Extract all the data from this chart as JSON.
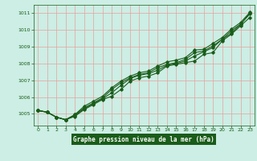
{
  "background_color": "#cceee4",
  "plot_bg_color": "#cceee4",
  "grid_color": "#e8a0a0",
  "line_color": "#1a5c1a",
  "label_bg": "#1a5c1a",
  "label_fg": "#ffffff",
  "xlabel": "Graphe pression niveau de la mer (hPa)",
  "ylim": [
    1004.3,
    1011.5
  ],
  "xlim": [
    -0.5,
    23.5
  ],
  "yticks": [
    1005,
    1006,
    1007,
    1008,
    1009,
    1010,
    1011
  ],
  "xticks": [
    0,
    1,
    2,
    3,
    4,
    5,
    6,
    7,
    8,
    9,
    10,
    11,
    12,
    13,
    14,
    15,
    16,
    17,
    18,
    19,
    20,
    21,
    22,
    23
  ],
  "lines": [
    [
      1005.2,
      1005.1,
      1004.8,
      1004.65,
      1004.85,
      1005.25,
      1005.55,
      1005.85,
      1006.05,
      1006.45,
      1006.95,
      1007.15,
      1007.25,
      1007.45,
      1007.85,
      1007.95,
      1008.05,
      1008.15,
      1008.55,
      1008.65,
      1009.35,
      1009.75,
      1010.25,
      1010.75
    ],
    [
      1005.2,
      1005.1,
      1004.8,
      1004.65,
      1004.95,
      1005.35,
      1005.65,
      1005.95,
      1006.45,
      1006.85,
      1007.15,
      1007.35,
      1007.45,
      1007.75,
      1007.95,
      1008.05,
      1008.25,
      1008.65,
      1008.75,
      1009.05,
      1009.45,
      1009.95,
      1010.35,
      1010.95
    ],
    [
      1005.2,
      1005.1,
      1004.8,
      1004.65,
      1004.95,
      1005.45,
      1005.75,
      1006.05,
      1006.55,
      1006.95,
      1007.25,
      1007.45,
      1007.55,
      1007.85,
      1008.1,
      1008.2,
      1008.35,
      1008.8,
      1008.85,
      1009.2,
      1009.55,
      1010.05,
      1010.45,
      1011.05
    ],
    [
      1005.2,
      1005.1,
      1004.8,
      1004.65,
      1004.9,
      1005.3,
      1005.6,
      1005.9,
      1006.25,
      1006.7,
      1007.1,
      1007.3,
      1007.4,
      1007.6,
      1007.9,
      1008.0,
      1008.15,
      1008.45,
      1008.7,
      1008.95,
      1009.45,
      1009.8,
      1010.35,
      1011.0
    ]
  ]
}
